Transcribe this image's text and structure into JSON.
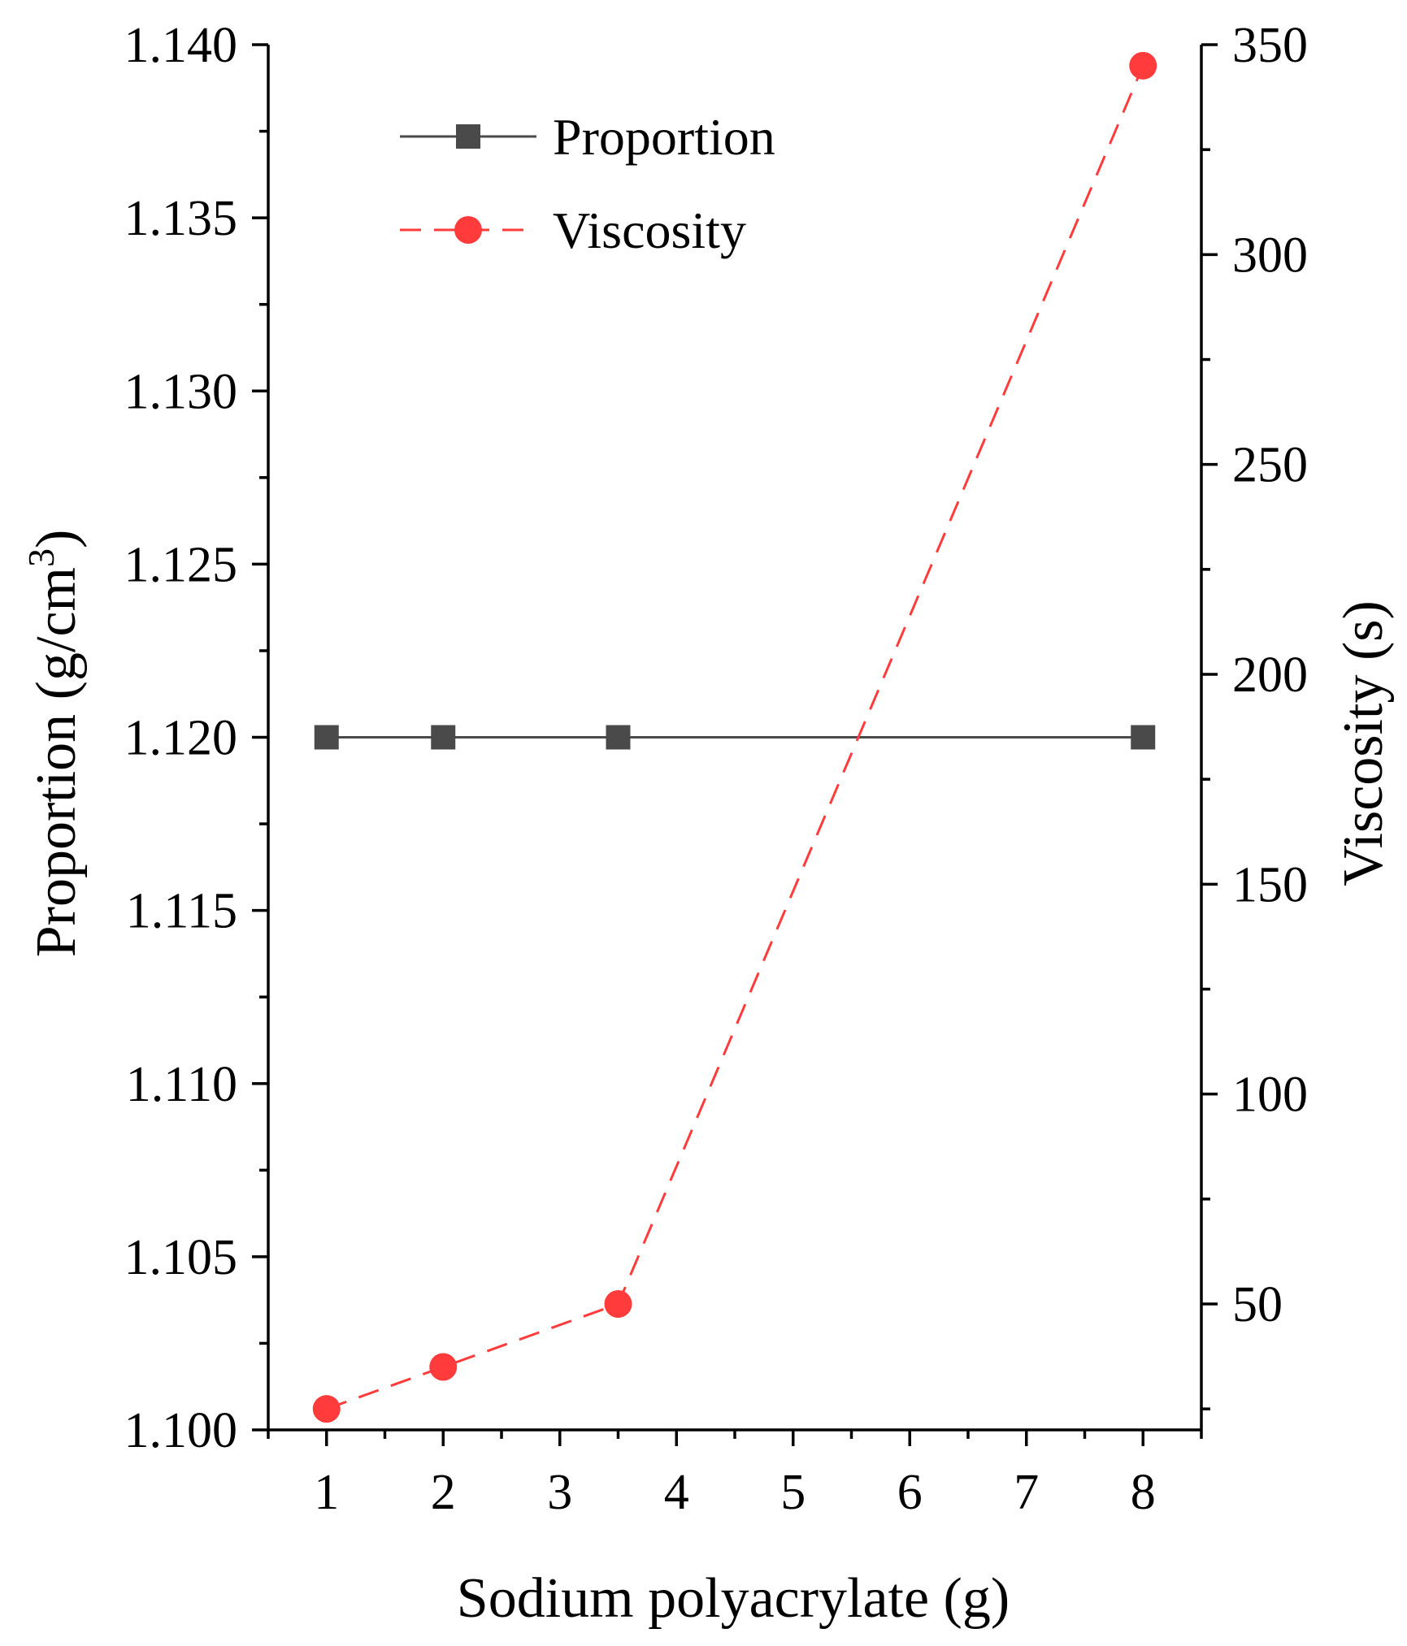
{
  "chart_data": {
    "type": "line",
    "title": "",
    "xlabel": "Sodium polyacrylate (g)",
    "ylabel_left": "Proportion (g/cm",
    "ylabel_left_superscript": "3",
    "ylabel_left_suffix": ")",
    "ylabel_right": "Viscosity (s)",
    "x_ticks": [
      1,
      2,
      3,
      4,
      5,
      6,
      7,
      8
    ],
    "x_range": [
      0.5,
      8.5
    ],
    "y_left_ticks": [
      "1.100",
      "1.105",
      "1.110",
      "1.115",
      "1.120",
      "1.125",
      "1.130",
      "1.135",
      "1.140"
    ],
    "y_left_range": [
      1.1,
      1.14
    ],
    "y_right_ticks": [
      50,
      100,
      150,
      200,
      250,
      300,
      350
    ],
    "y_right_range": [
      20,
      350
    ],
    "grid": false,
    "legend_position": "top-left",
    "series": [
      {
        "name": "Proportion",
        "axis": "left",
        "style": "solid",
        "marker": "square",
        "color": "#4a4a4a",
        "x": [
          1,
          2,
          3.5,
          8
        ],
        "y": [
          1.12,
          1.12,
          1.12,
          1.12
        ]
      },
      {
        "name": "Viscosity",
        "axis": "right",
        "style": "dashed",
        "marker": "circle",
        "color": "#ff3b3b",
        "x": [
          1,
          2,
          3.5,
          8
        ],
        "y": [
          25,
          35,
          50,
          345
        ]
      }
    ]
  }
}
